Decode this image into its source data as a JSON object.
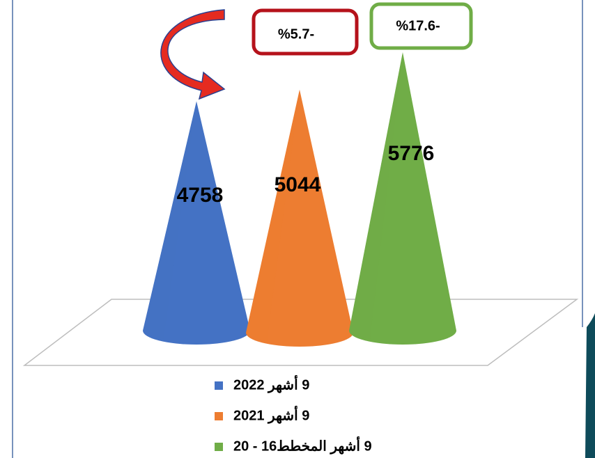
{
  "chart_data": {
    "type": "cone",
    "categories": [
      "9 أشهر 2022",
      "9 أشهر 2021",
      "9 أشهر المخطط16 - 20"
    ],
    "values": [
      4758,
      5044,
      5776
    ],
    "colors": [
      "#4472c4",
      "#ed7d31",
      "#70ad47"
    ],
    "annotations": [
      "%5.7-",
      "%17.6-"
    ]
  }
}
